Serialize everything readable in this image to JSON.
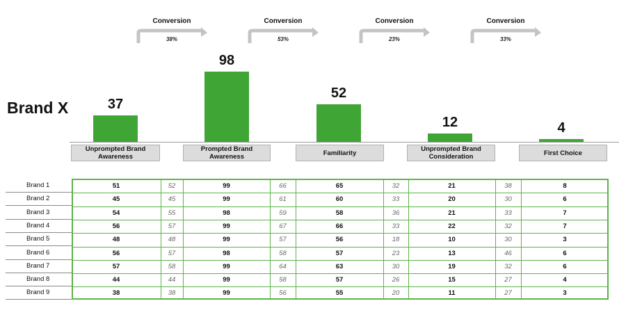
{
  "brand_title": "Brand X",
  "chart_data": [
    {
      "type": "bar",
      "categories": [
        "Unprompted Brand Awareness",
        "Prompted Brand Awareness",
        "Familiarity",
        "Unprompted Brand Consideration",
        "First Choice"
      ],
      "values": [
        37,
        98,
        52,
        12,
        4
      ],
      "title": "Brand X",
      "ylim": [
        0,
        100
      ],
      "grid": false,
      "colors": {
        "bar": "#3fa535"
      },
      "conversion_label": "Conversion",
      "conversions": [
        "38%",
        "53%",
        "23%",
        "33%"
      ]
    },
    {
      "type": "table",
      "rows": [
        "Brand 1",
        "Brand 2",
        "Brand 3",
        "Brand 4",
        "Brand 5",
        "Brand 6",
        "Brand 7",
        "Brand 8",
        "Brand 9"
      ],
      "columns": [
        "Unprompted Brand Awareness",
        "Conversion",
        "Prompted Brand Awareness",
        "Conversion",
        "Familiarity",
        "Conversion",
        "Unprompted Brand Consideration",
        "Conversion",
        "First Choice"
      ],
      "values": [
        [
          "51",
          "52",
          "99",
          "66",
          "65",
          "32",
          "21",
          "38",
          "8"
        ],
        [
          "45",
          "45",
          "99",
          "61",
          "60",
          "33",
          "20",
          "30",
          "6"
        ],
        [
          "54",
          "55",
          "98",
          "59",
          "58",
          "36",
          "21",
          "33",
          "7"
        ],
        [
          "56",
          "57",
          "99",
          "67",
          "66",
          "33",
          "22",
          "32",
          "7"
        ],
        [
          "48",
          "48",
          "99",
          "57",
          "56",
          "18",
          "10",
          "30",
          "3"
        ],
        [
          "56",
          "57",
          "98",
          "58",
          "57",
          "23",
          "13",
          "46",
          "6"
        ],
        [
          "57",
          "58",
          "99",
          "64",
          "63",
          "30",
          "19",
          "32",
          "6"
        ],
        [
          "44",
          "44",
          "99",
          "58",
          "57",
          "26",
          "15",
          "27",
          "4"
        ],
        [
          "38",
          "38",
          "99",
          "56",
          "55",
          "20",
          "11",
          "27",
          "3"
        ]
      ],
      "colors": {
        "grid": "#5cb347"
      }
    }
  ]
}
